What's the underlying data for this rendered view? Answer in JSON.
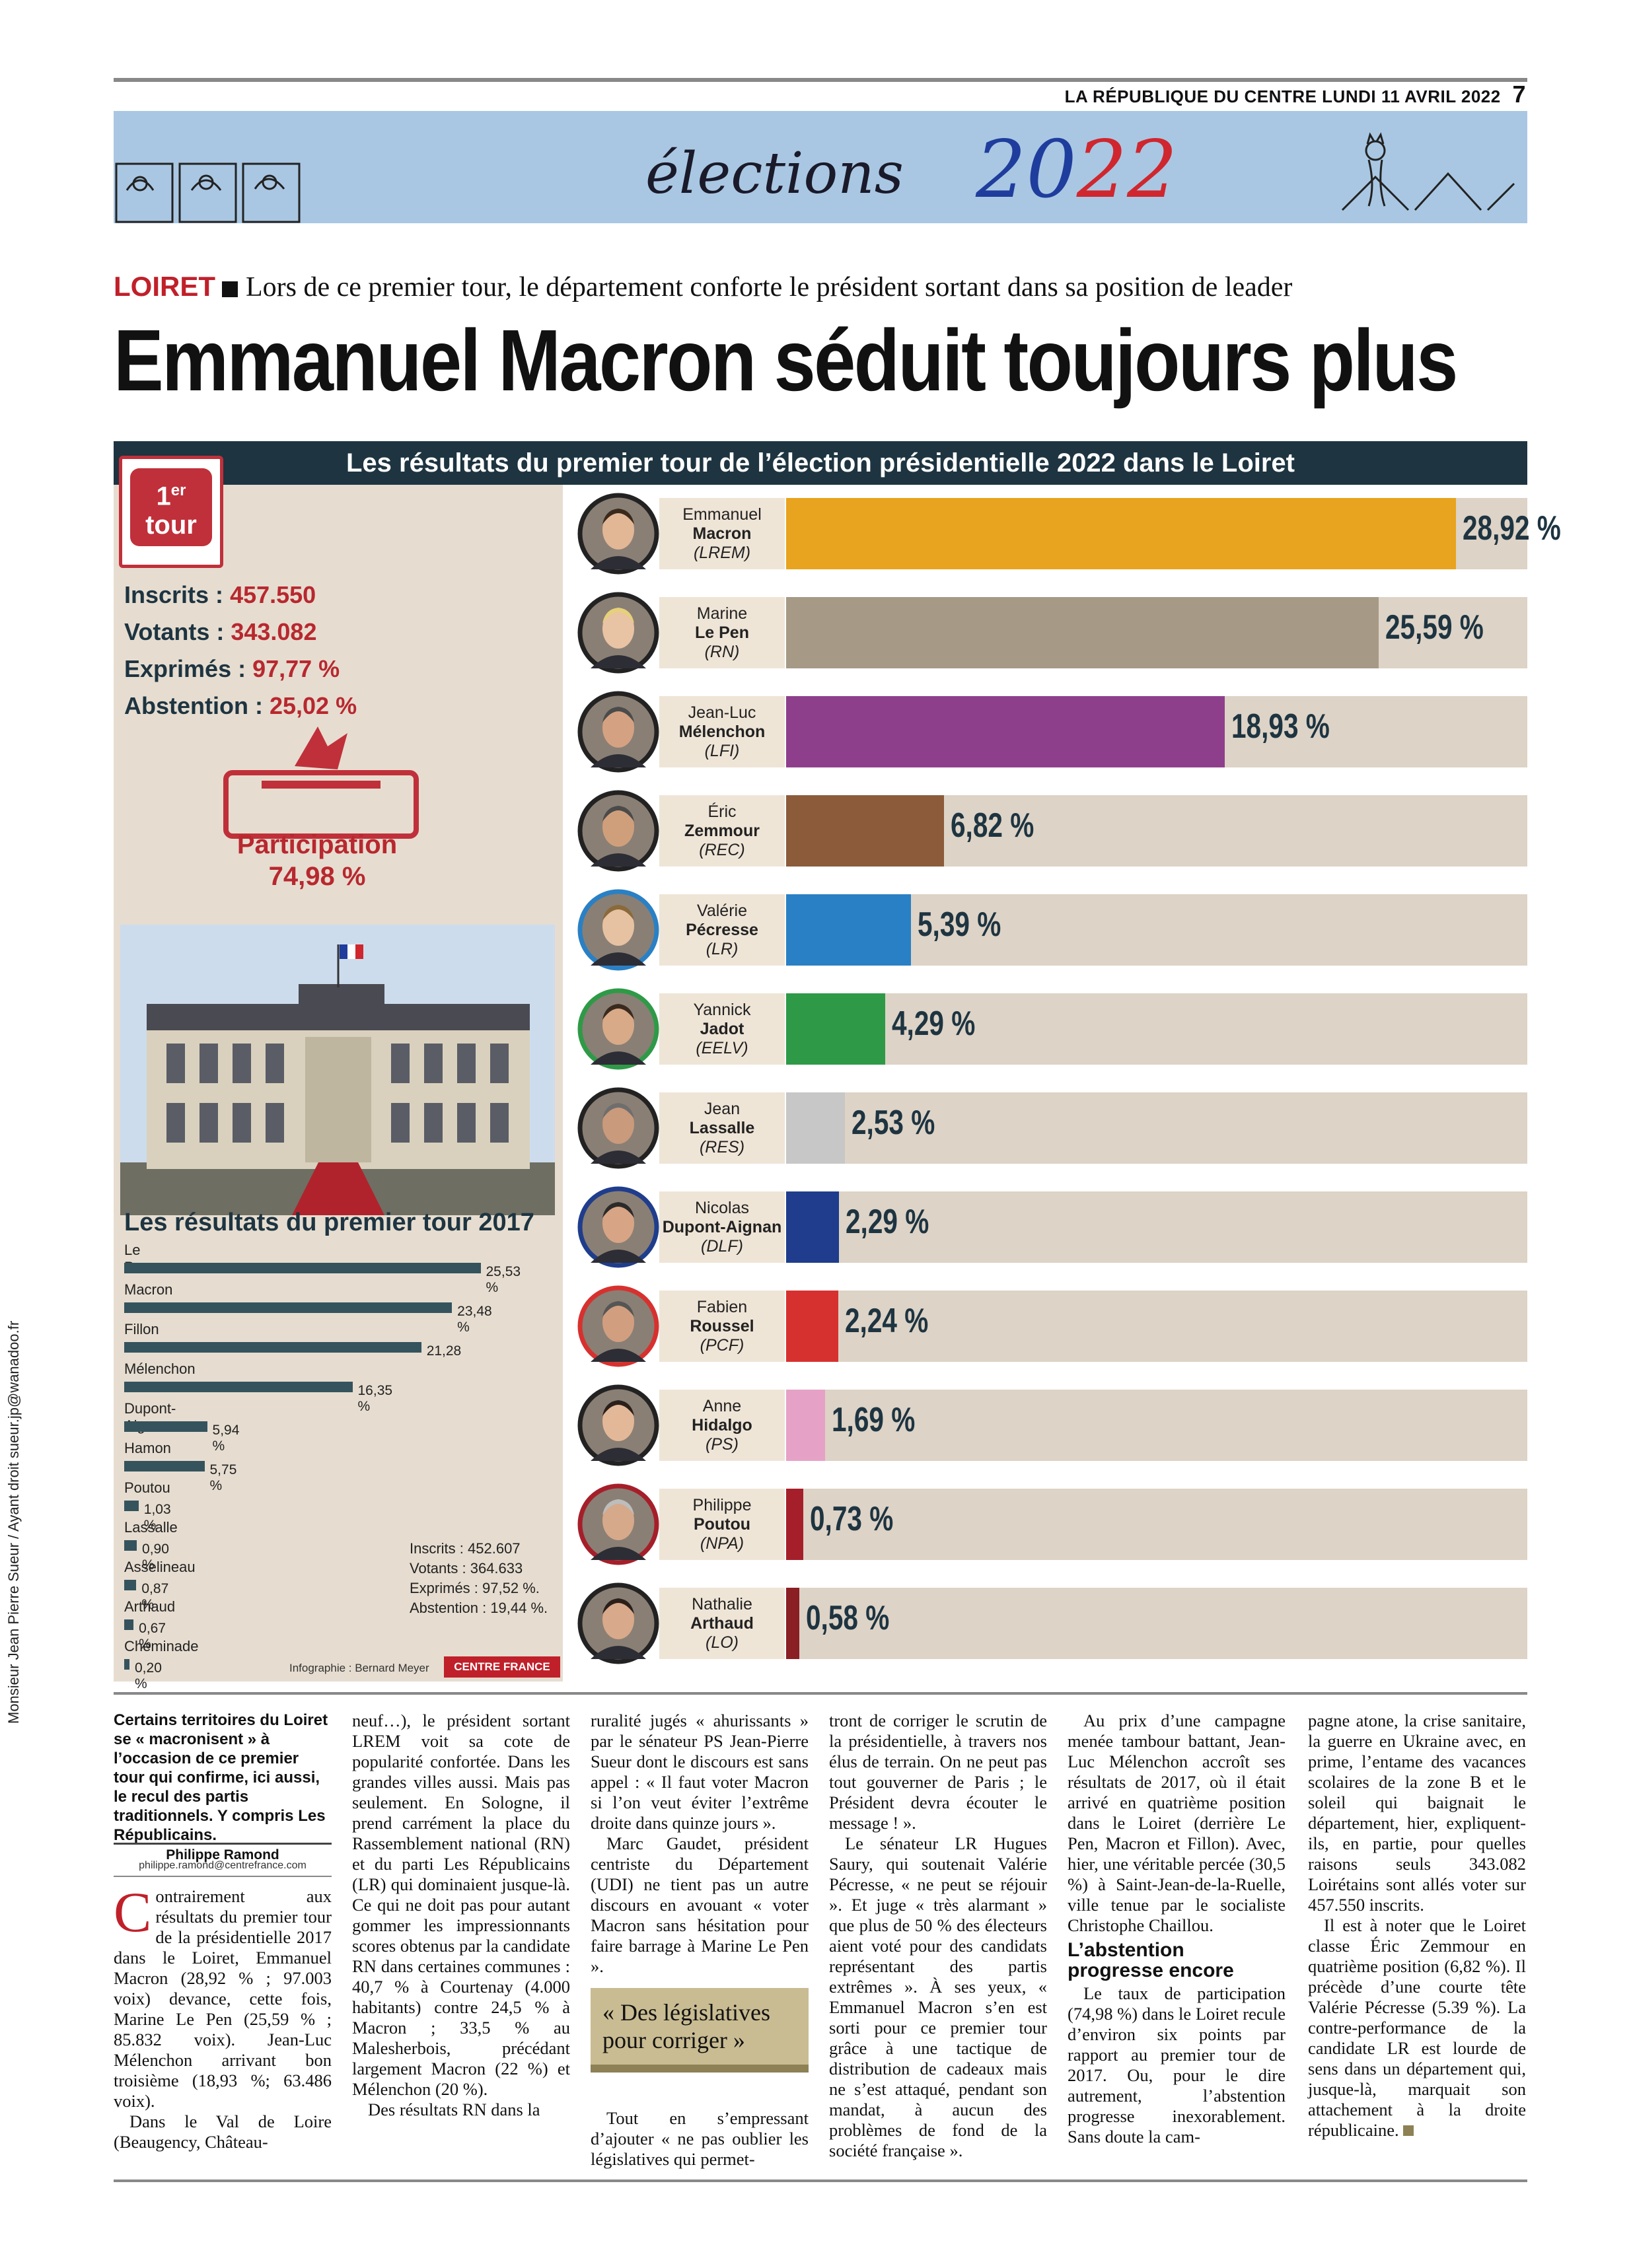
{
  "header": {
    "publication": "LA RÉPUBLIQUE DU CENTRE",
    "date": "LUNDI 11 AVRIL 2022",
    "page": "7",
    "banner_word": "élections",
    "banner_year_a": "20",
    "banner_year_b": "22"
  },
  "article": {
    "kicker_tag": "LOIRET",
    "kicker_text": "Lors de ce premier tour, le département conforte le président sortant dans sa position de leader",
    "headline": "Emmanuel Macron séduit toujours plus",
    "chapo": "Certains territoires du Loiret se « macronisent » à l’occasion de ce premier tour qui confirme, ici aussi, le recul des partis traditionnels. Y compris Les Républicains.",
    "author": "Philippe Ramond",
    "author_email": "philippe.ramond@centrefrance.com",
    "dropcap": "C",
    "col1": "ontrairement aux résultats du premier tour de la présidentielle 2017 dans le Loiret, Emmanuel Macron (28,92 % ; 97.003 voix) devance, cette fois, Marine Le Pen (25,59 % ; 85.832 voix). Jean-Luc Mélenchon arrivant bon troisième (18,93 %; 63.486 voix).",
    "col1b": "Dans le Val de Loire (Beaugency, Château-",
    "col2": "neuf…), le président sortant LREM voit sa cote de popularité confortée. Dans les grandes villes aussi. Mais pas seulement. En Sologne, il prend carrément la place du Rassemblement national (RN) et du parti Les Républicains (LR) qui dominaient jusque-là. Ce qui ne doit pas pour autant gommer les impressionnants scores obtenus par la candidate RN dans certaines communes : 40,7 % à Courtenay (4.000 habitants) contre 24,5 % à Macron ; 33,5 % au Malesherbois, précédant largement Macron (22 %) et Mélenchon (20 %).",
    "col2b": "Des résultats RN dans la",
    "col3": "ruralité jugés « ahurissants » par le sénateur PS Jean-Pierre Sueur dont le discours est sans appel : « Il faut voter Macron si l’on veut éviter l’extrême droite dans quinze jours ».",
    "col3b": "Marc Gaudet, président centriste du Département (UDI) ne tient pas un autre discours en avouant « voter Macron sans hésitation pour faire barrage à Marine Le Pen ».",
    "quote": "« Des législatives pour corriger »",
    "col3c": "Tout en s’empressant d’ajouter « ne pas oublier les législatives qui permet-",
    "col4": "tront de corriger le scrutin de la présidentielle, à travers nos élus de terrain. On ne peut pas tout gouverner de Paris ; le Président devra écouter le message ! ».",
    "col4b": "Le sénateur LR Hugues Saury, qui soutenait Valérie Pécresse, « ne peut se réjouir ». Et juge « très alarmant » que plus de 50 % des électeurs aient voté pour des candidats représentant des partis extrêmes ». À ses yeux, « Emmanuel Macron s’en est sorti pour ce premier tour grâce à une tactique de distribution de cadeaux mais ne s’est attaqué, pendant son mandat, à aucun des problèmes de fond de la société française ».",
    "col5": "Au prix d’une campagne menée tambour battant, Jean-Luc Mélenchon accroît ses résultats de 2017, où il était arrivé en quatrième position dans le Loiret (derrière Le Pen, Macron et Fillon). Avec, hier, une véritable percée (30,5 %) à Saint-Jean-de-la-Ruelle, ville tenue par le socialiste Christophe Chaillou.",
    "subhead": "L’abstention progresse encore",
    "col5b": "Le taux de participation (74,98 %) dans le Loiret recule d’environ six points par rapport au premier tour de 2017. Ou, pour le dire autrement, l’abstention progresse inexorablement. Sans doute la cam-",
    "col6": "pagne atone, la crise sanitaire, la guerre en Ukraine avec, en prime, l’entame des vacances scolaires de la zone B et le soleil qui baignait le département, hier, expliquent-ils, en partie, pour quelles raisons seuls 343.082 Loirétains sont allés voter sur 457.550 inscrits.",
    "col6b": "Il est à noter que le Loiret classe Éric Zemmour en quatrième position (6,82 %). Il précède d’une courte tête Valérie Pécresse (5.39 %). La contre-performance de la candidate LR est lourde de sens dans un département qui, jusque-là, marquait son attachement à la droite républicaine."
  },
  "infographic": {
    "title": "Les résultats du premier tour de l’élection présidentielle 2022 dans le Loiret",
    "badge_line1": "1",
    "badge_sup": "er",
    "badge_line2": "tour",
    "stats": {
      "inscrits_label": "Inscrits : ",
      "inscrits": "457.550",
      "votants_label": "Votants : ",
      "votants": "343.082",
      "exprimes_label": "Exprimés : ",
      "exprimes": "97,77 %",
      "abstention_label": "Abstention : ",
      "abstention": "25,02 %"
    },
    "participation_label": "Participation",
    "participation_value": "74,98 %",
    "title_2017": "Les résultats du premier tour 2017",
    "stats_2017": [
      "Inscrits : 452.607",
      "Votants : 364.633",
      "Exprimés : 97,52 %.",
      "Abstention : 19,44 %."
    ],
    "credit": "Infographie : Bernard Meyer",
    "agency": "CENTRE FRANCE"
  },
  "chart_data": [
    {
      "type": "bar",
      "title": "Les résultats du premier tour de l’élection présidentielle 2022 dans le Loiret",
      "unit": "%",
      "categories": [
        "Emmanuel Macron (LREM)",
        "Marine Le Pen (RN)",
        "Jean-Luc Mélenchon (LFI)",
        "Éric Zemmour (REC)",
        "Valérie Pécresse (LR)",
        "Yannick Jadot (EELV)",
        "Jean Lassalle (RES)",
        "Nicolas Dupont-Aignan (DLF)",
        "Fabien Roussel (PCF)",
        "Anne Hidalgo (PS)",
        "Philippe Poutou (NPA)",
        "Nathalie Arthaud (LO)"
      ],
      "values": [
        28.92,
        25.59,
        18.93,
        6.82,
        5.39,
        4.29,
        2.53,
        2.29,
        2.24,
        1.69,
        0.73,
        0.58
      ],
      "candidates": [
        {
          "first": "Emmanuel",
          "last": "Macron",
          "party": "(LREM)",
          "value": 28.92,
          "label": "28,92 %",
          "color": "#e8a41e",
          "icon": "portrait-macron-icon"
        },
        {
          "first": "Marine",
          "last": "Le Pen",
          "party": "(RN)",
          "value": 25.59,
          "label": "25,59 %",
          "color": "#a69a86",
          "icon": "portrait-lepen-icon"
        },
        {
          "first": "Jean-Luc",
          "last": "Mélenchon",
          "party": "(LFI)",
          "value": 18.93,
          "label": "18,93 %",
          "color": "#8e3f8c",
          "icon": "portrait-melenchon-icon"
        },
        {
          "first": "Éric",
          "last": "Zemmour",
          "party": "(REC)",
          "value": 6.82,
          "label": "6,82 %",
          "color": "#8c5b3a",
          "icon": "portrait-zemmour-icon"
        },
        {
          "first": "Valérie",
          "last": "Pécresse",
          "party": "(LR)",
          "value": 5.39,
          "label": "5,39 %",
          "color": "#2a80c4",
          "icon": "portrait-pecresse-icon"
        },
        {
          "first": "Yannick",
          "last": "Jadot",
          "party": "(EELV)",
          "value": 4.29,
          "label": "4,29 %",
          "color": "#2e9a47",
          "icon": "portrait-jadot-icon"
        },
        {
          "first": "Jean",
          "last": "Lassalle",
          "party": "(RES)",
          "value": 2.53,
          "label": "2,53 %",
          "color": "#c7c7c7",
          "icon": "portrait-lassalle-icon"
        },
        {
          "first": "Nicolas",
          "last": "Dupont-Aignan",
          "party": "(DLF)",
          "value": 2.29,
          "label": "2,29 %",
          "color": "#1f3d8c",
          "icon": "portrait-dupontaignan-icon"
        },
        {
          "first": "Fabien",
          "last": "Roussel",
          "party": "(PCF)",
          "value": 2.24,
          "label": "2,24 %",
          "color": "#d7312f",
          "icon": "portrait-roussel-icon"
        },
        {
          "first": "Anne",
          "last": "Hidalgo",
          "party": "(PS)",
          "value": 1.69,
          "label": "1,69 %",
          "color": "#e6a2c6",
          "icon": "portrait-hidalgo-icon"
        },
        {
          "first": "Philippe",
          "last": "Poutou",
          "party": "(NPA)",
          "value": 0.73,
          "label": "0,73 %",
          "color": "#a51f2a",
          "icon": "portrait-poutou-icon"
        },
        {
          "first": "Nathalie",
          "last": "Arthaud",
          "party": "(LO)",
          "value": 0.58,
          "label": "0,58 %",
          "color": "#8a1f24",
          "icon": "portrait-arthaud-icon"
        }
      ],
      "xlim": [
        0,
        32
      ]
    },
    {
      "type": "bar",
      "title": "Les résultats du premier tour 2017",
      "unit": "%",
      "categories": [
        "Le Pen",
        "Macron",
        "Fillon",
        "Mélenchon",
        "Dupont-Aignan",
        "Hamon",
        "Poutou",
        "Lassalle",
        "Asselineau",
        "Arthaud",
        "Cheminade"
      ],
      "values": [
        25.53,
        23.48,
        21.28,
        16.35,
        5.94,
        5.75,
        1.03,
        0.9,
        0.87,
        0.67,
        0.2
      ],
      "labels": [
        "25,53 %",
        "23,48 %",
        "21,28",
        "16,35 %",
        "5,94 %",
        "5,75 %",
        "1,03 %",
        "0,90 %",
        "0,87 %",
        "0,67 %",
        "0,20 %"
      ],
      "color": "#35535d",
      "xlim": [
        0,
        26.5
      ]
    }
  ],
  "side_credit": "Monsieur Jean Pierre Sueur / Ayant droit sueur.jp@wanadoo.fr",
  "colors": {
    "accent_red": "#c0202a",
    "navy": "#1e3441",
    "panel": "#e6ddd0",
    "banner": "#a9c7e3"
  }
}
